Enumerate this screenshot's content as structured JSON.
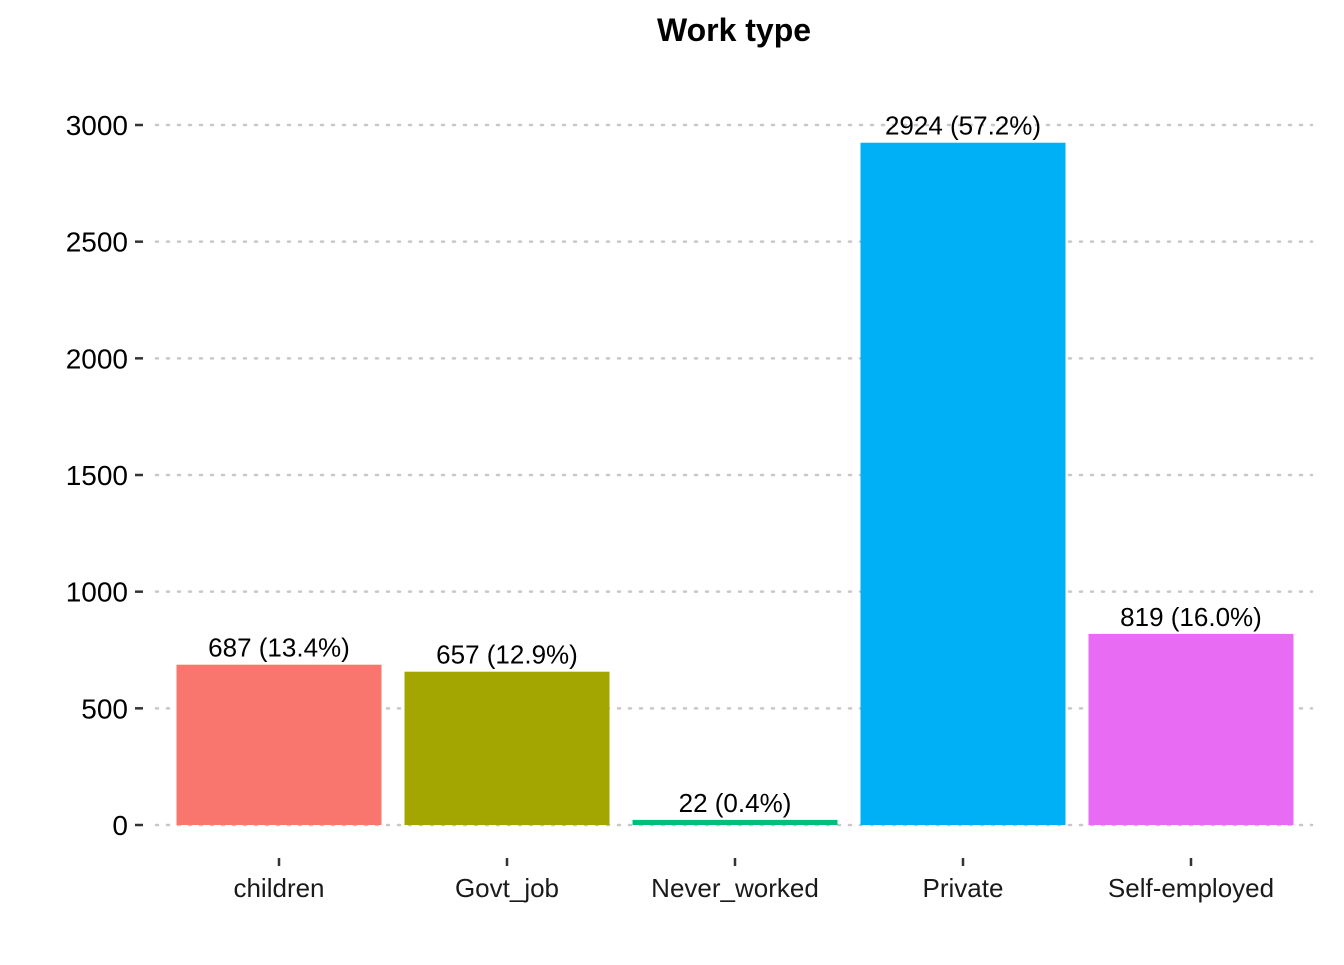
{
  "chart_data": {
    "type": "bar",
    "title": "Work type",
    "xlabel": "",
    "ylabel": "",
    "categories": [
      "children",
      "Govt_job",
      "Never_worked",
      "Private",
      "Self-employed"
    ],
    "values": [
      687,
      657,
      22,
      2924,
      819
    ],
    "labels": [
      "687 (13.4%)",
      "657 (12.9%)",
      "22 (0.4%)",
      "2924 (57.2%)",
      "819 (16.0%)"
    ],
    "colors": [
      "#F8766D",
      "#A3A500",
      "#00BF7D",
      "#00B0F6",
      "#E76BF3"
    ],
    "y_ticks": [
      0,
      500,
      1000,
      1500,
      2000,
      2500,
      3000
    ],
    "y_tick_labels": [
      "0",
      "500",
      "1000",
      "1500",
      "2000",
      "2500",
      "3000"
    ],
    "ylim": [
      0,
      3000
    ],
    "grid": true,
    "grid_style": "dotted",
    "legend": false
  }
}
